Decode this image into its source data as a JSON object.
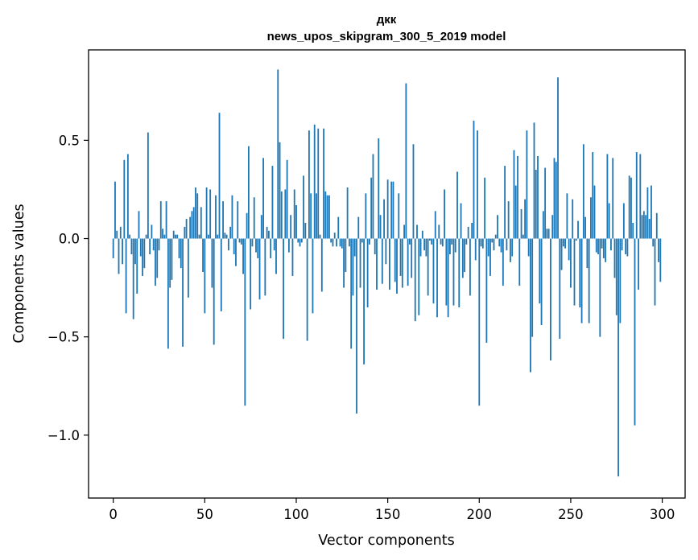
{
  "chart_data": {
    "type": "bar",
    "title": "дкк",
    "subtitle": "news_upos_skipgram_300_5_2019 model",
    "xlabel": "Vector components",
    "ylabel": "Components values",
    "xlim": [
      -13.5,
      312.5
    ],
    "ylim": [
      -1.32,
      0.96
    ],
    "xticks": [
      0,
      50,
      100,
      150,
      200,
      250,
      300
    ],
    "yticks": [
      0.5,
      0.0,
      -0.5,
      -1.0
    ],
    "ytick_labels": [
      "0.5",
      "0.0",
      "−0.5",
      "−1.0"
    ],
    "bar_color": "#1f77b4",
    "values": [
      -0.1,
      0.29,
      0.04,
      -0.18,
      0.06,
      -0.13,
      0.4,
      -0.38,
      0.43,
      0.02,
      -0.08,
      -0.41,
      -0.13,
      -0.28,
      0.14,
      -0.09,
      -0.19,
      -0.15,
      0.02,
      0.54,
      -0.08,
      0.07,
      -0.06,
      -0.24,
      -0.2,
      -0.06,
      0.19,
      0.05,
      0.02,
      0.19,
      -0.56,
      -0.25,
      -0.21,
      0.04,
      0.02,
      0.02,
      -0.1,
      -0.15,
      -0.55,
      0.06,
      0.1,
      -0.3,
      0.11,
      0.14,
      0.16,
      0.26,
      0.23,
      0.02,
      0.16,
      -0.17,
      -0.38,
      0.26,
      0.02,
      0.25,
      -0.25,
      -0.54,
      0.22,
      0.02,
      0.64,
      -0.37,
      0.19,
      0.03,
      0.02,
      -0.06,
      0.06,
      0.22,
      -0.08,
      -0.14,
      0.19,
      -0.02,
      -0.03,
      -0.18,
      -0.85,
      0.13,
      0.47,
      -0.36,
      -0.04,
      0.21,
      -0.07,
      -0.1,
      -0.31,
      0.12,
      0.41,
      -0.29,
      0.06,
      0.04,
      -0.1,
      0.37,
      -0.06,
      -0.18,
      0.86,
      0.49,
      0.24,
      -0.51,
      0.25,
      0.4,
      -0.07,
      0.12,
      -0.19,
      0.25,
      0.17,
      -0.02,
      -0.04,
      -0.02,
      0.32,
      0.08,
      -0.52,
      0.55,
      0.23,
      -0.38,
      0.58,
      0.23,
      0.56,
      0.02,
      -0.27,
      0.56,
      0.24,
      0.22,
      0.22,
      -0.02,
      -0.04,
      0.03,
      -0.04,
      0.11,
      -0.04,
      -0.05,
      -0.25,
      -0.17,
      0.26,
      -0.04,
      -0.56,
      -0.29,
      -0.09,
      -0.89,
      0.11,
      -0.25,
      -0.02,
      -0.64,
      0.23,
      -0.35,
      -0.03,
      0.31,
      0.43,
      -0.08,
      -0.26,
      0.51,
      0.12,
      -0.23,
      0.2,
      -0.13,
      0.3,
      -0.26,
      0.29,
      0.29,
      -0.22,
      -0.28,
      0.23,
      -0.19,
      -0.25,
      0.07,
      0.79,
      -0.24,
      -0.03,
      -0.2,
      0.48,
      -0.42,
      0.07,
      -0.39,
      -0.09,
      0.04,
      -0.06,
      -0.09,
      -0.29,
      -0.01,
      -0.03,
      -0.33,
      0.14,
      -0.4,
      0.07,
      -0.03,
      -0.04,
      0.25,
      -0.34,
      -0.4,
      -0.08,
      -0.03,
      -0.34,
      -0.07,
      0.34,
      -0.35,
      0.18,
      -0.2,
      -0.17,
      -0.03,
      0.06,
      -0.29,
      0.08,
      0.6,
      -0.11,
      0.55,
      -0.85,
      -0.04,
      -0.05,
      0.31,
      -0.53,
      -0.09,
      -0.19,
      -0.02,
      -0.06,
      0.02,
      0.12,
      -0.04,
      -0.07,
      -0.24,
      0.37,
      -0.06,
      0.19,
      -0.12,
      -0.09,
      0.45,
      0.27,
      0.42,
      -0.24,
      0.15,
      0.02,
      0.2,
      0.55,
      -0.09,
      -0.68,
      -0.5,
      0.59,
      0.35,
      0.42,
      -0.33,
      -0.44,
      0.14,
      0.36,
      0.05,
      0.05,
      -0.62,
      0.12,
      0.41,
      0.39,
      0.82,
      -0.51,
      -0.16,
      -0.04,
      -0.05,
      0.23,
      -0.11,
      -0.25,
      0.2,
      -0.34,
      -0.01,
      0.09,
      -0.35,
      -0.43,
      0.48,
      0.11,
      -0.15,
      -0.43,
      0.21,
      0.44,
      0.27,
      -0.07,
      -0.08,
      -0.5,
      -0.05,
      -0.1,
      -0.12,
      0.43,
      0.18,
      -0.06,
      0.41,
      -0.2,
      -0.39,
      -1.21,
      -0.43,
      -0.06,
      0.18,
      -0.08,
      -0.09,
      0.32,
      0.31,
      0.08,
      -0.95,
      0.44,
      -0.26,
      0.43,
      0.12,
      0.14,
      0.12,
      0.26,
      0.1,
      0.27,
      -0.04,
      -0.34,
      0.13,
      -0.12,
      -0.22
    ]
  }
}
